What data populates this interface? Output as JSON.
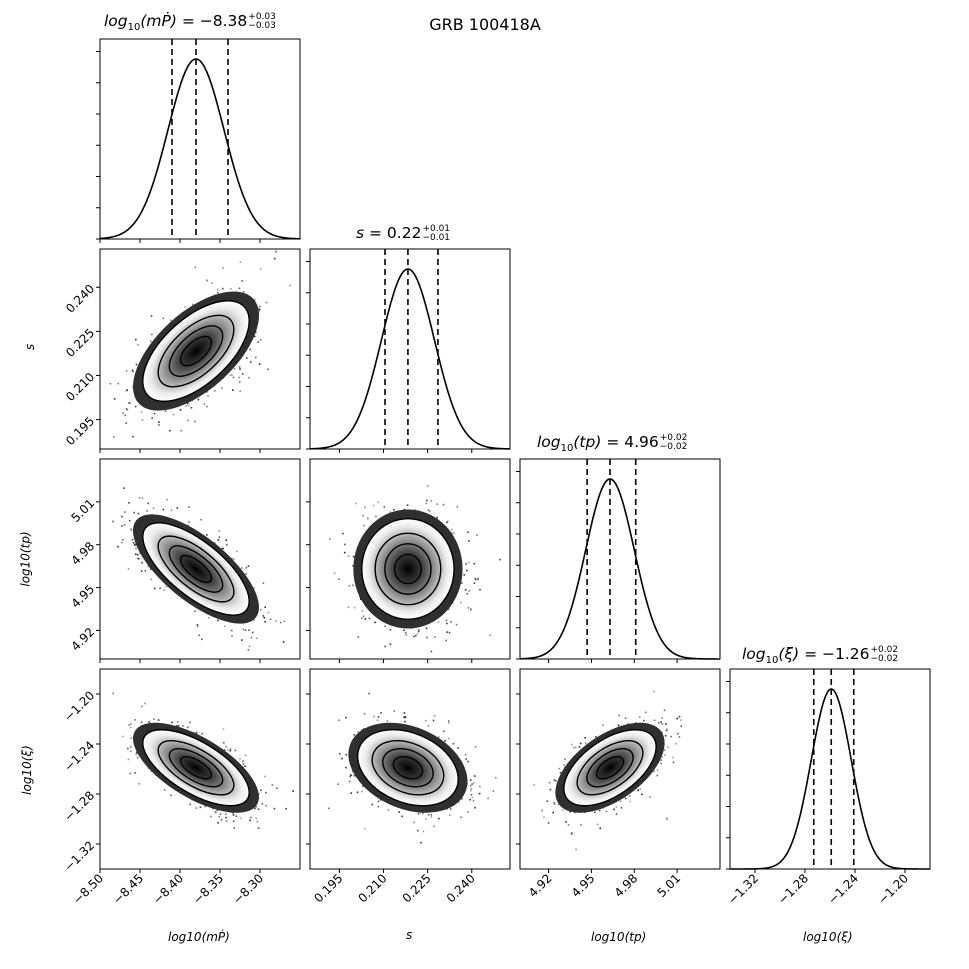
{
  "chart_data": {
    "type": "corner",
    "title": "GRB 100418A",
    "parameters": [
      {
        "key": "mp",
        "label": "log10(mṖ)",
        "median": -8.38,
        "plus": 0.03,
        "minus": 0.03,
        "quantiles": [
          -8.41,
          -8.38,
          -8.34
        ],
        "axis_range": [
          -8.5,
          -8.25
        ],
        "ticks": [
          -8.5,
          -8.45,
          -8.4,
          -8.35,
          -8.3
        ],
        "tick_labels": [
          "−8.50",
          "−8.45",
          "−8.40",
          "−8.35",
          "−8.30"
        ]
      },
      {
        "key": "s",
        "label": "s",
        "median": 0.22,
        "plus": 0.01,
        "minus": 0.01,
        "quantiles": [
          0.2105,
          0.2183,
          0.2285
        ],
        "axis_range": [
          0.185,
          0.253
        ],
        "ticks": [
          0.195,
          0.21,
          0.225,
          0.24
        ],
        "tick_labels": [
          "0.195",
          "0.210",
          "0.225",
          "0.240"
        ]
      },
      {
        "key": "tp",
        "label": "log10(tp)",
        "median": 4.96,
        "plus": 0.02,
        "minus": 0.02,
        "quantiles": [
          4.947,
          4.963,
          4.981
        ],
        "axis_range": [
          4.9,
          5.04
        ],
        "ticks": [
          4.92,
          4.95,
          4.98,
          5.01
        ],
        "tick_labels": [
          "4.92",
          "4.95",
          "4.98",
          "5.01"
        ]
      },
      {
        "key": "xi",
        "label": "log10(ξ)",
        "median": -1.26,
        "plus": 0.02,
        "minus": 0.02,
        "quantiles": [
          -1.273,
          -1.259,
          -1.241
        ],
        "axis_range": [
          -1.34,
          -1.18
        ],
        "ticks": [
          -1.32,
          -1.28,
          -1.24,
          -1.2
        ],
        "tick_labels": [
          "−1.32",
          "−1.28",
          "−1.24",
          "−1.20"
        ]
      }
    ],
    "correlations": [
      {
        "x": "mp",
        "y": "s",
        "rho": 0.6
      },
      {
        "x": "mp",
        "y": "tp",
        "rho": -0.7
      },
      {
        "x": "s",
        "y": "tp",
        "rho": 0.0
      },
      {
        "x": "mp",
        "y": "xi",
        "rho": -0.65
      },
      {
        "x": "s",
        "y": "xi",
        "rho": -0.3
      },
      {
        "x": "tp",
        "y": "xi",
        "rho": 0.55
      }
    ]
  },
  "titles": {
    "mp": {
      "prefix": "log",
      "sub": "10",
      "arg": "(mṖ)",
      "value": "= −8.38",
      "sup": "+0.03",
      "subv": "−0.03"
    },
    "s": {
      "prefix": "s",
      "sub": "",
      "arg": "",
      "value": "= 0.22",
      "sup": "+0.01",
      "subv": "−0.01"
    },
    "tp": {
      "prefix": "log",
      "sub": "10",
      "arg": "(tp)",
      "value": "= 4.96",
      "sup": "+0.02",
      "subv": "−0.02"
    },
    "xi": {
      "prefix": "log",
      "sub": "10",
      "arg": "(ξ)",
      "value": "= −1.26",
      "sup": "+0.02",
      "subv": "−0.02"
    }
  },
  "axis_labels": {
    "mp": "log10(mṖ)",
    "s": "s",
    "tp": "log10(tp)",
    "xi": "log10(ξ)"
  }
}
